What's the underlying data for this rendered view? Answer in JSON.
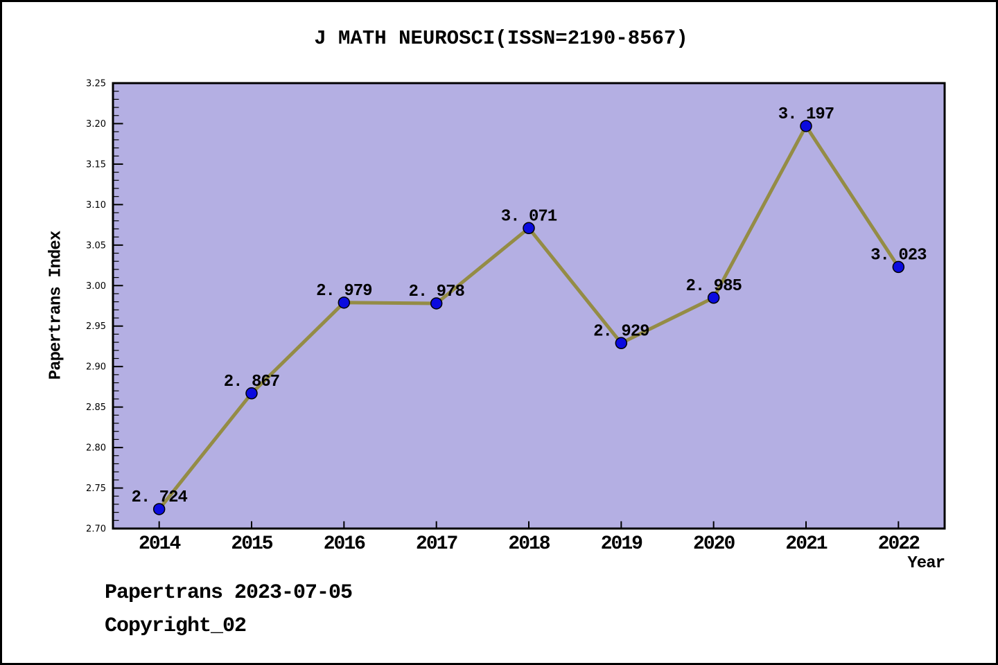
{
  "chart_data": {
    "type": "line",
    "title": "J MATH NEUROSCI(ISSN=2190-8567)",
    "xlabel": "Year",
    "ylabel": "Papertrans Index",
    "x": [
      2014,
      2015,
      2016,
      2017,
      2018,
      2019,
      2020,
      2021,
      2022
    ],
    "series": [
      {
        "name": "Papertrans Index",
        "values": [
          2.724,
          2.867,
          2.979,
          2.978,
          3.071,
          2.929,
          2.985,
          3.197,
          3.023
        ]
      }
    ],
    "point_labels": [
      "2.724",
      "2.867",
      "2.979",
      "2.978",
      "3.071",
      "2.929",
      "2.985",
      "3.197",
      "3.023"
    ],
    "xlim": [
      2013.5,
      2022.5
    ],
    "ylim": [
      2.7,
      3.25
    ],
    "y_major_step": 0.05,
    "y_minor_step": 0.01,
    "grid": false,
    "legend_position": "none",
    "colors": {
      "line": "#948c45",
      "marker_fill": "#0b0bdf",
      "marker_edge": "#000000",
      "plot_background": "#b4afe3",
      "axis": "#000000",
      "text": "#000000"
    }
  },
  "footer": {
    "date_line": "Papertrans 2023-07-05",
    "copyright_line": "Copyright_02"
  }
}
